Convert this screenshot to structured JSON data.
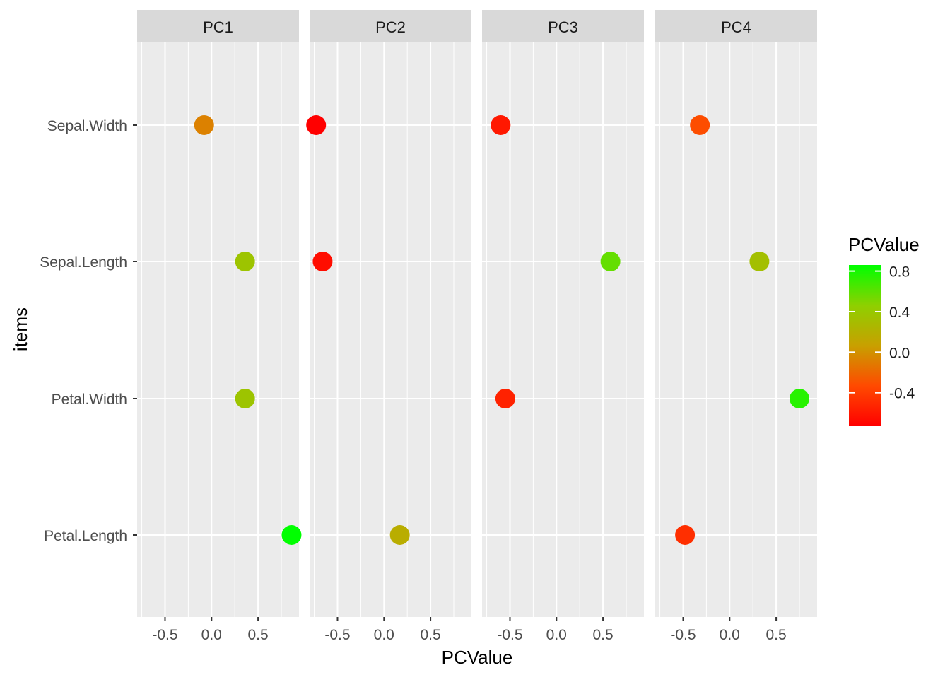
{
  "chart_data": {
    "type": "scatter",
    "facets": [
      "PC1",
      "PC2",
      "PC3",
      "PC4"
    ],
    "y_categories": [
      "Petal.Length",
      "Petal.Width",
      "Sepal.Length",
      "Sepal.Width"
    ],
    "x_ticks": [
      "-0.5",
      "0.0",
      "0.5"
    ],
    "x_tick_values": [
      -0.5,
      0.0,
      0.5
    ],
    "xlim": [
      -0.8,
      0.94
    ],
    "xlabel": "PCValue",
    "ylabel": "items",
    "grid": true,
    "points": [
      {
        "facet": "PC1",
        "item": "Sepal.Width",
        "value": -0.08
      },
      {
        "facet": "PC1",
        "item": "Sepal.Length",
        "value": 0.36
      },
      {
        "facet": "PC1",
        "item": "Petal.Width",
        "value": 0.36
      },
      {
        "facet": "PC1",
        "item": "Petal.Length",
        "value": 0.86
      },
      {
        "facet": "PC2",
        "item": "Sepal.Width",
        "value": -0.73
      },
      {
        "facet": "PC2",
        "item": "Sepal.Length",
        "value": -0.66
      },
      {
        "facet": "PC2",
        "item": "Petal.Width",
        "value": null
      },
      {
        "facet": "PC2",
        "item": "Petal.Length",
        "value": 0.17
      },
      {
        "facet": "PC3",
        "item": "Sepal.Width",
        "value": -0.6
      },
      {
        "facet": "PC3",
        "item": "Sepal.Length",
        "value": 0.58
      },
      {
        "facet": "PC3",
        "item": "Petal.Width",
        "value": -0.55
      },
      {
        "facet": "PC3",
        "item": "Petal.Length",
        "value": null
      },
      {
        "facet": "PC4",
        "item": "Sepal.Width",
        "value": -0.32
      },
      {
        "facet": "PC4",
        "item": "Sepal.Length",
        "value": 0.32
      },
      {
        "facet": "PC4",
        "item": "Petal.Width",
        "value": 0.75
      },
      {
        "facet": "PC4",
        "item": "Petal.Length",
        "value": -0.48
      }
    ],
    "legend": {
      "title": "PCValue",
      "position": "right",
      "ticks": [
        "0.8",
        "0.4",
        "0.0",
        "-0.4"
      ],
      "tick_values": [
        0.8,
        0.4,
        0.0,
        -0.4
      ],
      "range": [
        -0.73,
        0.86
      ],
      "low_color": "#ff0000",
      "high_color": "#00ff00"
    },
    "colors": {
      "panel_bg": "#ebebeb",
      "strip_bg": "#d9d9d9",
      "grid": "#ffffff",
      "text": "#4d4d4d",
      "title_text": "#000000"
    }
  }
}
